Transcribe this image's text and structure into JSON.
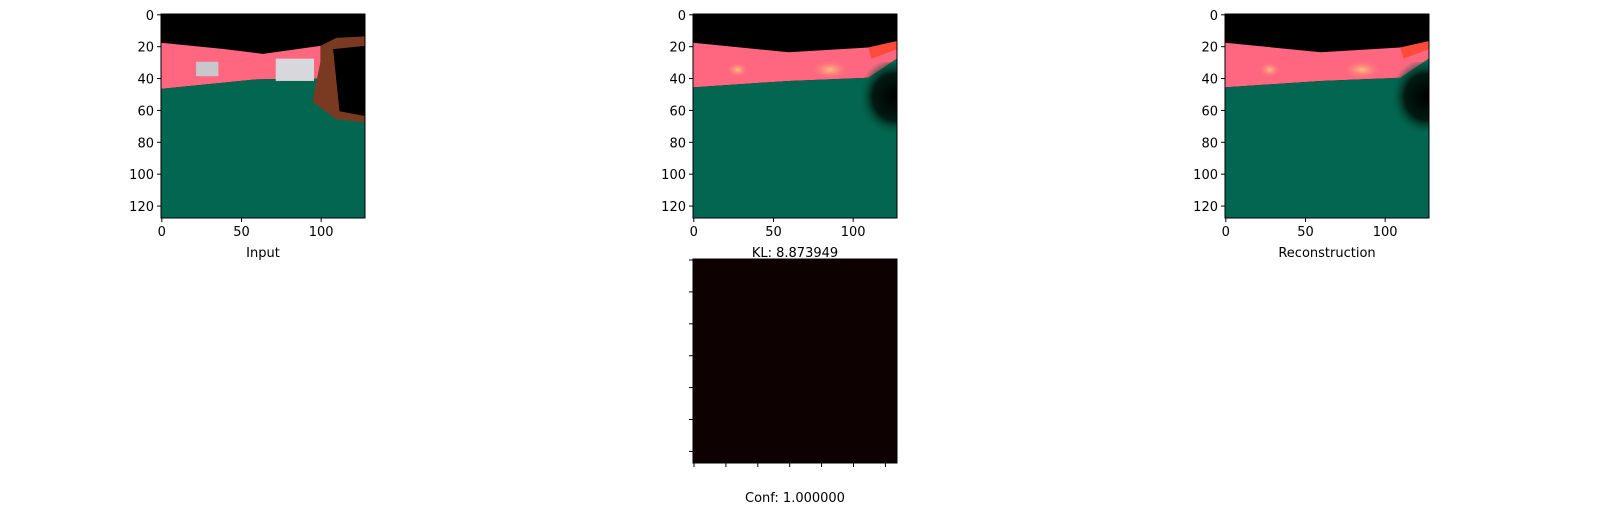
{
  "panels": [
    {
      "xlabel": "Input",
      "xlim": [
        -0.5,
        127.5
      ],
      "ylim": [
        127.5,
        -0.5
      ],
      "xticks": [
        0,
        50,
        100
      ],
      "yticks": [
        0,
        20,
        40,
        60,
        80,
        100,
        120
      ]
    },
    {
      "xlabel": "KL: 8.873949",
      "xlim": [
        -0.5,
        127.5
      ],
      "ylim": [
        127.5,
        -0.5
      ],
      "xticks": [
        0,
        50,
        100
      ],
      "yticks": [
        0,
        20,
        40,
        60,
        80,
        100,
        120
      ]
    },
    {
      "xlabel": "Reconstruction",
      "xlim": [
        -0.5,
        127.5
      ],
      "ylim": [
        127.5,
        -0.5
      ],
      "xticks": [
        0,
        50,
        100
      ],
      "yticks": [
        0,
        20,
        40,
        60,
        80,
        100,
        120
      ]
    },
    {
      "xlabel": "Conf: 1.000000"
    }
  ]
}
